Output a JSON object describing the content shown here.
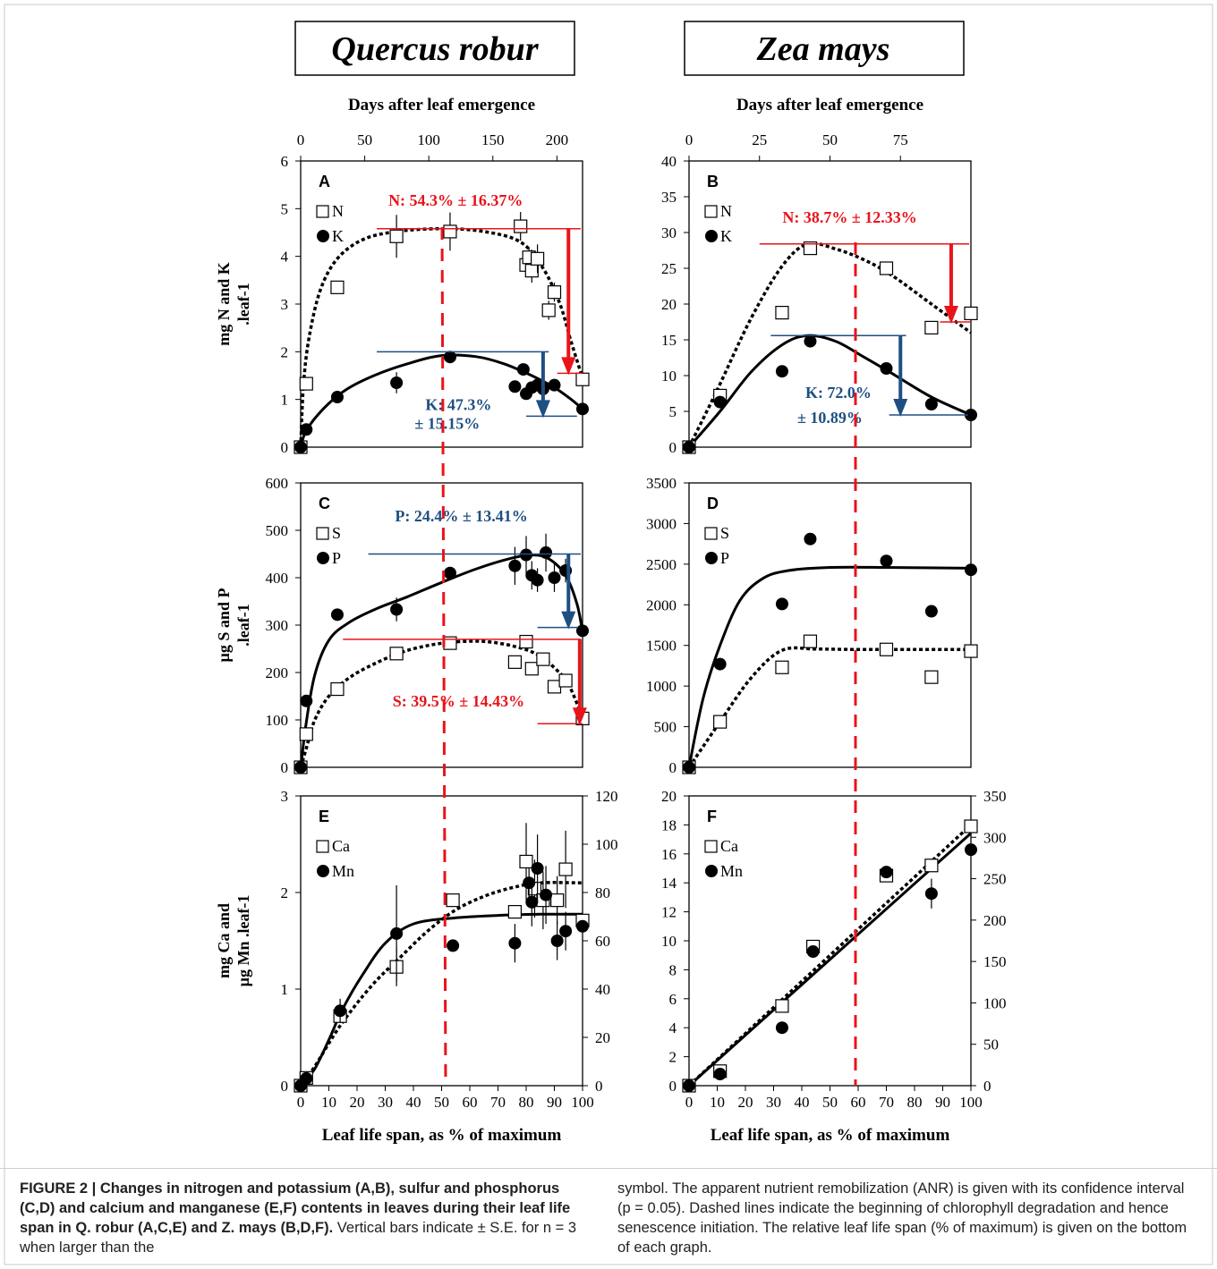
{
  "figure": {
    "species_titles": [
      "Quercus robur",
      "Zea mays"
    ],
    "top_axis_title": "Days after leaf emergence",
    "bottom_axis_title": "Leaf life span, as % of maximum"
  },
  "chart_data": [
    {
      "panel": "A",
      "type": "scatter",
      "ylabel": "mg N and K .leaf-1",
      "xlim": [
        0,
        100
      ],
      "ylim": [
        0,
        6
      ],
      "yticks": [
        0,
        1,
        2,
        3,
        4,
        5,
        6
      ],
      "top_axis": {
        "label": "Days after leaf emergence",
        "ticks": [
          0,
          50,
          100,
          150,
          200
        ],
        "max_days": 220
      },
      "legend": [
        "N",
        "K"
      ],
      "series": [
        {
          "name": "N",
          "marker": "open-square",
          "fit": "dotted",
          "x": [
            0,
            2,
            13,
            34,
            53,
            78,
            80,
            81,
            82,
            84,
            88,
            90,
            100
          ],
          "y": [
            0,
            1.33,
            3.35,
            4.42,
            4.52,
            4.63,
            3.82,
            3.98,
            3.7,
            3.95,
            2.87,
            3.25,
            1.42
          ],
          "err": [
            0,
            0,
            0,
            0.45,
            0.4,
            0.3,
            0.25,
            0.2,
            0.25,
            0.3,
            0.2,
            0.2,
            0
          ]
        },
        {
          "name": "K",
          "marker": "filled-circle",
          "fit": "solid",
          "x": [
            0,
            2,
            13,
            34,
            53,
            76,
            79,
            80,
            82,
            84,
            86,
            90,
            100
          ],
          "y": [
            0,
            0.37,
            1.05,
            1.35,
            1.89,
            1.27,
            1.63,
            1.12,
            1.25,
            1.3,
            1.22,
            1.3,
            0.8
          ],
          "err": [
            0,
            0,
            0,
            0.22,
            0,
            0,
            0,
            0,
            0,
            0,
            0,
            0,
            0
          ]
        }
      ],
      "anr": [
        {
          "text": "N: 54.3% ± 16.37%",
          "color": "#e8141a"
        },
        {
          "text": "K: 47.3%",
          "text2": "± 15.15%",
          "color": "#1f4f82"
        }
      ]
    },
    {
      "panel": "B",
      "type": "scatter",
      "ylabel": "",
      "xlim": [
        0,
        100
      ],
      "ylim": [
        0,
        40
      ],
      "yticks": [
        0,
        5,
        10,
        15,
        20,
        25,
        30,
        35,
        40
      ],
      "top_axis": {
        "label": "Days after leaf emergence",
        "ticks": [
          0,
          25,
          50,
          75
        ],
        "max_days": 100
      },
      "legend": [
        "N",
        "K"
      ],
      "series": [
        {
          "name": "N",
          "marker": "open-square",
          "fit": "dotted",
          "x": [
            0,
            11,
            33,
            43,
            70,
            86,
            100
          ],
          "y": [
            0,
            7.2,
            18.8,
            27.8,
            25,
            16.7,
            18.7
          ]
        },
        {
          "name": "K",
          "marker": "filled-circle",
          "fit": "solid",
          "x": [
            0,
            11,
            33,
            43,
            70,
            86,
            100
          ],
          "y": [
            0,
            6.3,
            10.6,
            14.8,
            11,
            6,
            4.5
          ]
        }
      ],
      "anr": [
        {
          "text": "N: 38.7% ± 12.33%",
          "color": "#e8141a"
        },
        {
          "text": "K: 72.0%",
          "text2": "± 10.89%",
          "color": "#1f4f82"
        }
      ]
    },
    {
      "panel": "C",
      "type": "scatter",
      "ylabel": "µg S and P .leaf-1",
      "xlim": [
        0,
        100
      ],
      "ylim": [
        0,
        600
      ],
      "yticks": [
        0,
        100,
        200,
        300,
        400,
        500,
        600
      ],
      "legend": [
        "S",
        "P"
      ],
      "series": [
        {
          "name": "S",
          "marker": "open-square",
          "fit": "dotted",
          "x": [
            0,
            2,
            13,
            34,
            53,
            76,
            80,
            82,
            86,
            90,
            94,
            100
          ],
          "y": [
            0,
            70,
            165,
            240,
            262,
            222,
            265,
            208,
            228,
            170,
            183,
            103
          ]
        },
        {
          "name": "P",
          "marker": "filled-circle",
          "fit": "solid",
          "x": [
            0,
            2,
            13,
            34,
            53,
            76,
            80,
            82,
            84,
            87,
            90,
            94,
            100
          ],
          "y": [
            0,
            140,
            322,
            333,
            410,
            425,
            448,
            405,
            395,
            453,
            400,
            415,
            288
          ],
          "err": [
            0,
            0,
            0,
            25,
            0,
            40,
            40,
            30,
            25,
            40,
            30,
            25,
            0
          ]
        }
      ],
      "anr": [
        {
          "text": "P: 24.4% ± 13.41%",
          "color": "#1f4f82"
        },
        {
          "text": "S: 39.5% ± 14.43%",
          "color": "#e8141a"
        }
      ]
    },
    {
      "panel": "D",
      "type": "scatter",
      "ylabel": "",
      "xlim": [
        0,
        100
      ],
      "ylim": [
        0,
        3500
      ],
      "yticks": [
        0,
        500,
        1000,
        1500,
        2000,
        2500,
        3000,
        3500
      ],
      "legend": [
        "S",
        "P"
      ],
      "series": [
        {
          "name": "S",
          "marker": "open-square",
          "fit": "dotted",
          "x": [
            0,
            11,
            33,
            43,
            70,
            86,
            100
          ],
          "y": [
            0,
            560,
            1230,
            1550,
            1450,
            1110,
            1430
          ]
        },
        {
          "name": "P",
          "marker": "filled-circle",
          "fit": "solid",
          "x": [
            0,
            11,
            33,
            43,
            70,
            86,
            100
          ],
          "y": [
            0,
            1270,
            2010,
            2810,
            2540,
            1920,
            2430
          ]
        }
      ]
    },
    {
      "panel": "E",
      "type": "scatter",
      "ylabel": "mg Ca and µg Mn .leaf-1",
      "xlabel": "Leaf life span, as % of maximum",
      "xlim": [
        0,
        100
      ],
      "ylim": [
        0,
        3
      ],
      "y2lim": [
        0,
        120
      ],
      "xticks": [
        0,
        10,
        20,
        30,
        40,
        50,
        60,
        70,
        80,
        90,
        100
      ],
      "yticks": [
        0,
        1,
        2,
        3
      ],
      "y2ticks": [
        0,
        20,
        40,
        60,
        80,
        100,
        120
      ],
      "legend": [
        "Ca",
        "Mn"
      ],
      "series": [
        {
          "name": "Ca",
          "marker": "open-square",
          "fit": "dotted",
          "axis": "left",
          "x": [
            0,
            2,
            14,
            34,
            54,
            76,
            80,
            83,
            86,
            91,
            94,
            100
          ],
          "y": [
            0,
            0.08,
            0.72,
            1.23,
            1.92,
            1.8,
            2.32,
            2.04,
            1.92,
            1.92,
            2.24,
            1.71
          ],
          "err": [
            0,
            0,
            0,
            0.2,
            0,
            0,
            0.4,
            0.3,
            0.3,
            0.25,
            0.4,
            0
          ]
        },
        {
          "name": "Mn",
          "marker": "filled-circle",
          "fit": "solid",
          "axis": "right",
          "x": [
            0,
            2,
            14,
            34,
            54,
            76,
            81,
            82,
            84,
            87,
            91,
            94,
            100
          ],
          "y": [
            0,
            3,
            31,
            63,
            58,
            59,
            84,
            76,
            90,
            79,
            60,
            64,
            66
          ],
          "err": [
            0,
            0,
            5,
            20,
            0,
            8,
            6,
            10,
            14,
            12,
            8,
            8,
            0
          ]
        }
      ]
    },
    {
      "panel": "F",
      "type": "scatter",
      "ylabel": "",
      "xlabel": "Leaf life span, as % of maximum",
      "xlim": [
        0,
        100
      ],
      "ylim": [
        0,
        20
      ],
      "y2lim": [
        0,
        350
      ],
      "xticks": [
        0,
        10,
        20,
        30,
        40,
        50,
        60,
        70,
        80,
        90,
        100
      ],
      "yticks": [
        0,
        2,
        4,
        6,
        8,
        10,
        12,
        14,
        16,
        18,
        20
      ],
      "y2ticks": [
        0,
        50,
        100,
        150,
        200,
        250,
        300,
        350
      ],
      "legend": [
        "Ca",
        "Mn"
      ],
      "series": [
        {
          "name": "Ca",
          "marker": "open-square",
          "fit": "dotted",
          "axis": "left",
          "x": [
            0,
            11,
            33,
            44,
            70,
            86,
            100
          ],
          "y": [
            0,
            1,
            5.5,
            9.6,
            14.5,
            15.2,
            17.9
          ]
        },
        {
          "name": "Mn",
          "marker": "filled-circle",
          "fit": "solid",
          "axis": "right",
          "x": [
            0,
            11,
            33,
            44,
            70,
            86,
            100
          ],
          "y": [
            0,
            14,
            70,
            162,
            258,
            232,
            285
          ],
          "err": [
            0,
            0,
            0,
            0,
            0,
            18,
            0
          ]
        }
      ]
    }
  ],
  "caption": {
    "title": "FIGURE 2 | Changes in nitrogen and potassium (A,B), sulfur and phosphorus (C,D) and calcium and manganese (E,F) contents in leaves during their leaf life span in Q. robur (A,C,E) and Z. mays (B,D,F).",
    "body_left": "Vertical bars indicate ± S.E. for n = 3 when larger than the",
    "body_right": "symbol. The apparent nutrient remobilization (ANR) is given with its confidence interval (p = 0.05). Dashed lines indicate the beginning of chlorophyll degradation and hence senescence initiation. The relative leaf life span (% of maximum) is given on the bottom of each graph."
  }
}
